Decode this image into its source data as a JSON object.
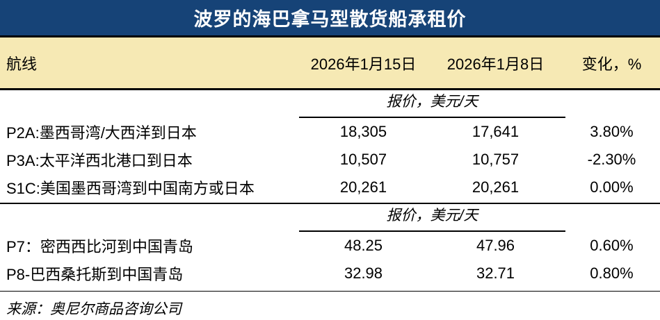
{
  "title": "波罗的海巴拿马型散货船承租价",
  "source": "来源：奥尼尔商品咨询公司",
  "colors": {
    "navy": "#164377",
    "cream": "#F6E9B4",
    "line": "#000000",
    "title_text": "#FFFFFF"
  },
  "chart_data": {
    "type": "table",
    "title": "波罗的海巴拿马型散货船承租价",
    "columns": [
      "航线",
      "2026年1月15日",
      "2026年1月8日",
      "变化，%"
    ],
    "sections": [
      {
        "subheader": "报价，美元/天",
        "rows": [
          [
            "P2A:墨西哥湾/大西洋到日本",
            "18,305",
            "17,641",
            "3.80%"
          ],
          [
            "P3A:太平洋西北港口到日本",
            "10,507",
            "10,757",
            "-2.30%"
          ],
          [
            "S1C:美国墨西哥湾到中国南方或日本",
            "20,261",
            "20,261",
            "0.00%"
          ]
        ]
      },
      {
        "subheader": "报价，美元/天",
        "rows": [
          [
            "P7：密西西比河到中国青岛",
            "48.25",
            "47.96",
            "0.60%"
          ],
          [
            "P8-巴西桑托斯到中国青岛",
            "32.98",
            "32.71",
            "0.80%"
          ]
        ]
      }
    ],
    "source": "来源：奥尼尔商品咨询公司"
  }
}
